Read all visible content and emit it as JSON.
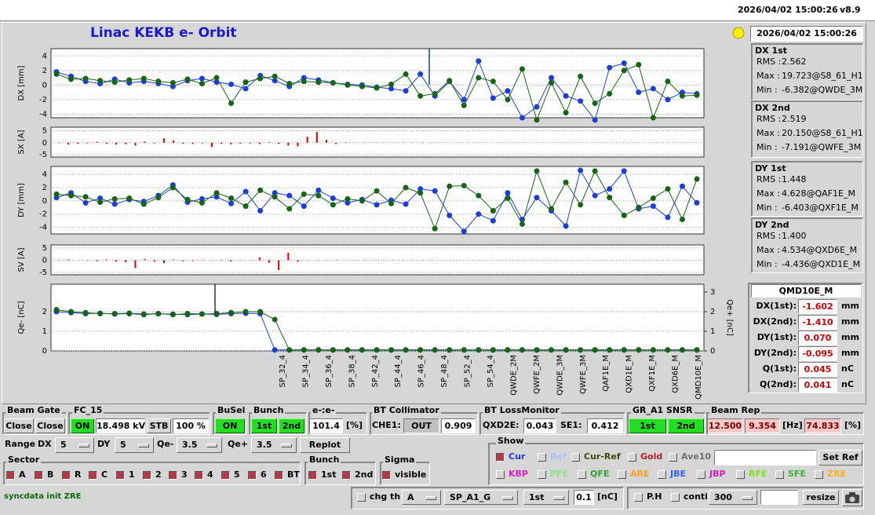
{
  "header": {
    "timestamp": "2026/04/02 15:00:26",
    "version": "v8.9"
  },
  "title": "Linac KEKB e- Orbit",
  "clock": "2026/04/02 15:00:26",
  "plots": [
    {
      "type": "line",
      "ylabel": "DX [mm]",
      "ylim": [
        -4.5,
        5
      ],
      "yticks": [
        -4,
        -2,
        0,
        2,
        4
      ],
      "series": [
        {
          "color": "#1c3ed6",
          "values": [
            1.8,
            1.2,
            0.5,
            0.2,
            0.8,
            0.3,
            0.5,
            0.2,
            -0.2,
            0.6,
            0.9,
            0.4,
            0.1,
            -0.5,
            1.3,
            0.6,
            -0.2,
            1.0,
            0.7,
            0.3,
            0.1,
            0.0,
            -0.3,
            -0.5,
            -0.8,
            1.5,
            -1.5,
            0.5,
            -2.0,
            3.3,
            -1.8,
            -0.8,
            -4.5,
            -3.0,
            1.0,
            -1.5,
            -2.2,
            -4.8,
            2.4,
            3.0,
            -1.0,
            -0.5,
            -2.0,
            -1.0,
            -1.2
          ]
        },
        {
          "color": "#166416",
          "values": [
            1.5,
            0.8,
            0.9,
            0.6,
            0.4,
            0.7,
            0.9,
            0.5,
            0.3,
            0.8,
            0.2,
            1.0,
            -2.5,
            0.4,
            0.9,
            1.2,
            0.2,
            0.5,
            0.4,
            0.3,
            0.0,
            -0.2,
            -0.4,
            0.1,
            1.5,
            -1.5,
            -1.2,
            0.6,
            -2.8,
            1.0,
            0.5,
            -2.0,
            2.2,
            -4.8,
            0.3,
            -3.8,
            1.2,
            -2.5,
            -1.2,
            2.0,
            2.8,
            -4.5,
            0.5,
            -1.5,
            -1.4
          ]
        }
      ]
    },
    {
      "type": "bar",
      "ylabel": "SX [A]",
      "ylim": [
        -6,
        6.5
      ],
      "yticks": [
        -5,
        0,
        5
      ],
      "color": "#e00000",
      "values": [
        0,
        -0.8,
        -0.5,
        -0.3,
        0.4,
        -0.5,
        -0.8,
        -0.6,
        -1.2,
        0.5,
        -0.3,
        1.8,
        1.0,
        -0.4,
        -0.6,
        -0.3,
        -1.8,
        -0.5,
        -0.7,
        -0.4,
        -0.3,
        -0.6,
        0.3,
        -0.5,
        -1.2,
        -1.5,
        2.5,
        4.5,
        1.2,
        -0.6,
        0.2,
        0.1,
        0.1,
        0.1,
        0.1,
        0.1,
        0.1,
        0.1,
        0.1,
        0.1
      ]
    },
    {
      "type": "line",
      "ylabel": "DY [mm]",
      "ylim": [
        -5,
        5.2
      ],
      "yticks": [
        -4,
        -2,
        0,
        2,
        4
      ],
      "series": [
        {
          "color": "#1c3ed6",
          "values": [
            0.5,
            1.2,
            -0.3,
            0.4,
            -0.5,
            0.2,
            -0.1,
            0.8,
            2.4,
            -0.2,
            0.3,
            0.6,
            -0.4,
            1.4,
            -1.5,
            1.2,
            0.8,
            -0.8,
            1.6,
            0.4,
            -0.3,
            0.2,
            -0.6,
            0.1,
            -0.5,
            1.8,
            1.5,
            -2.2,
            -4.6,
            -2.0,
            -3.0,
            1.2,
            -2.8,
            0.5,
            -1.5,
            -3.8,
            4.6,
            0.8,
            1.8,
            4.5,
            -1.2,
            -0.8,
            -2.5,
            2.2,
            -0.3
          ]
        },
        {
          "color": "#166416",
          "values": [
            1.0,
            0.8,
            0.6,
            -0.2,
            0.3,
            0.4,
            -0.5,
            0.5,
            2.0,
            0.2,
            -0.3,
            1.2,
            0.4,
            -0.8,
            1.6,
            0.6,
            -1.2,
            1.0,
            0.8,
            -0.6,
            0.3,
            0.0,
            1.5,
            -0.4,
            2.0,
            1.2,
            -4.2,
            2.2,
            2.3,
            0.8,
            -1.5,
            0.4,
            -3.5,
            4.5,
            -1.2,
            2.8,
            -0.6,
            4.5,
            0.5,
            -2.2,
            -1.0,
            0.4,
            1.8,
            -2.8,
            3.3
          ]
        }
      ]
    },
    {
      "type": "bar",
      "ylabel": "SV [A]",
      "ylim": [
        -5.9,
        6.2
      ],
      "yticks": [
        -5,
        0,
        5
      ],
      "color": "#e00000",
      "values": [
        0.2,
        0.3,
        0.1,
        -0.2,
        -0.4,
        0.3,
        -0.6,
        -0.8,
        -3.2,
        0.5,
        -0.6,
        -1.2,
        0.3,
        -0.4,
        -0.3,
        0.2,
        0.1,
        -0.2,
        -0.5,
        -0.1,
        0.1,
        1.2,
        -1.0,
        -4.0,
        3.0,
        -0.6,
        0.1,
        0.1,
        0.1,
        0.1,
        0.1,
        0.1,
        0.1,
        0.1,
        0.1,
        0.1,
        0.1,
        0.1,
        0.1,
        0.1
      ]
    },
    {
      "type": "charge",
      "ylabel": "Qe- [nC]",
      "y2label": "Qe+ [nC]",
      "ylim": [
        0,
        3.4
      ],
      "yticks": [
        0,
        1,
        2
      ],
      "y2lim": [
        0,
        3.4
      ],
      "y2ticks": [
        0,
        1,
        2,
        3
      ],
      "series": [
        {
          "color": "#1c3ed6",
          "values": [
            2.0,
            1.95,
            1.9,
            1.92,
            1.88,
            1.9,
            1.85,
            1.9,
            1.87,
            1.85,
            1.88,
            1.86,
            1.9,
            1.92,
            1.9,
            0.05,
            0.05,
            0.05,
            0.05,
            0.05,
            0.05,
            0.05,
            0.05,
            0.05,
            0.05,
            0.05,
            0.05,
            0.05,
            0.05,
            0.05,
            0.05,
            0.05,
            0.05,
            0.05,
            0.05,
            0.05,
            0.05,
            0.05,
            0.05,
            0.05,
            0.05,
            0.05,
            0.05,
            0.05,
            0.05
          ]
        },
        {
          "color": "#166416",
          "axis": "y2",
          "values": [
            2.1,
            2.0,
            1.95,
            1.9,
            1.9,
            1.92,
            1.88,
            1.9,
            1.85,
            1.9,
            1.88,
            1.9,
            1.95,
            2.0,
            2.0,
            1.6,
            0.05,
            0.05,
            0.05,
            0.05,
            0.05,
            0.05,
            0.05,
            0.05,
            0.05,
            0.05,
            0.05,
            0.05,
            0.05,
            0.05,
            0.05,
            0.05,
            0.05,
            0.05,
            0.05,
            0.05,
            0.05,
            0.05,
            0.05,
            0.05,
            0.05,
            0.05,
            0.05,
            0.05,
            0.05
          ]
        }
      ]
    }
  ],
  "xlabels": [
    "SP_32_4",
    "SP_34_4",
    "SP_36_4",
    "SP_38_4",
    "SP_42_4",
    "SP_44_4",
    "SP_46_4",
    "SP_48_4",
    "SP_52_4",
    "SP_54_4",
    "QWDE_2M",
    "QWFE_2M",
    "QWDE_3M",
    "QWFE_3M",
    "QAF1E_M",
    "QXD1E_M",
    "QXF1E_M",
    "QXD6E_M",
    "QMD10E_M"
  ],
  "stats": [
    {
      "title": "DX 1st",
      "rows": [
        [
          "RMS :",
          "2.562"
        ],
        [
          "Max :",
          "19.723@S8_61_H1"
        ],
        [
          "Min :",
          "-6.382@QWDE_3M"
        ]
      ]
    },
    {
      "title": "DX 2nd",
      "rows": [
        [
          "RMS :",
          "2.519"
        ],
        [
          "Max :",
          "20.150@S8_61_H1"
        ],
        [
          "Min :",
          "-7.191@QWFE_3M"
        ]
      ]
    },
    {
      "title": "DY 1st",
      "rows": [
        [
          "RMS :",
          "1.448"
        ],
        [
          "Max :",
          "4.628@QAF1E_M"
        ],
        [
          "Min :",
          "-6.403@QXF1E_M"
        ]
      ]
    },
    {
      "title": "DY 2nd",
      "rows": [
        [
          "RMS :",
          "1.400"
        ],
        [
          "Max :",
          "4.534@QXD6E_M"
        ],
        [
          "Min :",
          "-4.436@QXD1E_M"
        ]
      ]
    }
  ],
  "monitor": {
    "name": "QMD10E_M",
    "rows": [
      [
        "DX(1st):",
        "-1.602",
        "mm"
      ],
      [
        "DX(2nd):",
        "-1.410",
        "mm"
      ],
      [
        "DY(1st):",
        "0.070",
        "mm"
      ],
      [
        "DY(2nd):",
        "-0.095",
        "mm"
      ],
      [
        "Q(1st):",
        "0.045",
        "nC"
      ],
      [
        "Q(2nd):",
        "0.041",
        "nC"
      ]
    ]
  },
  "controls": {
    "beam_gate": {
      "label": "Beam Gate",
      "buttons": [
        "Close",
        "Close"
      ]
    },
    "fc": {
      "label": "FC_15",
      "state": "ON",
      "voltage": "18.498 kV",
      "mode": "STB",
      "percent": "100 %"
    },
    "busel": {
      "label": "BuSel",
      "state": "ON"
    },
    "bunch_top": {
      "label": "Bunch",
      "items": [
        "1st",
        "2nd"
      ]
    },
    "ratio": {
      "label": "e-:e-",
      "value": "101.4",
      "unit": "[%]"
    },
    "collimator": {
      "label": "BT Collimator",
      "name": "CHE1:",
      "state": "OUT",
      "value": "0.909"
    },
    "loss": {
      "label": "BT LossMonitor",
      "items": [
        [
          "QXD2E:",
          "0.043"
        ],
        [
          "SE1:",
          "0.412"
        ]
      ]
    },
    "snsr": {
      "label": "GR_A1 SNSR",
      "items": [
        "1st",
        "2nd"
      ]
    },
    "rep": {
      "label": "Beam Rep",
      "values": [
        "12.500",
        "9.354"
      ],
      "unit": "[Hz]",
      "ratio": "74.833",
      "ratio_unit": "[%]"
    },
    "range": {
      "label": "Range",
      "fields": [
        [
          "DX",
          "5"
        ],
        [
          "DY",
          "5"
        ],
        [
          "Qe-",
          "3.5"
        ],
        [
          "Qe+",
          "3.5"
        ]
      ],
      "button": "Replot"
    },
    "show": {
      "label": "Show",
      "row1": [
        {
          "text": "Cur",
          "color": "#1c3ed6",
          "checked": true
        },
        {
          "text": "Ref",
          "color": "#a8c4ff"
        },
        {
          "text": "Cur-Ref",
          "color": "#3a4a10"
        },
        {
          "text": "Gold",
          "color": "#b02020"
        },
        {
          "text": "Ave10",
          "color": "#707070"
        }
      ],
      "button": "Set Ref",
      "row2": [
        {
          "text": "KBP",
          "color": "#e020c0"
        },
        {
          "text": "PFE",
          "color": "#90e090"
        },
        {
          "text": "QFE",
          "color": "#30a030"
        },
        {
          "text": "ARE",
          "color": "#ffa020"
        },
        {
          "text": "JBE",
          "color": "#3060ff"
        },
        {
          "text": "JBP",
          "color": "#d020c0"
        },
        {
          "text": "RFE",
          "color": "#80e020"
        },
        {
          "text": "SFE",
          "color": "#40b040"
        },
        {
          "text": "ZRE",
          "color": "#ffb020"
        }
      ]
    },
    "sector": {
      "label": "Sector",
      "items": [
        "A",
        "B",
        "R",
        "C",
        "1",
        "2",
        "3",
        "4",
        "5",
        "6",
        "BT"
      ]
    },
    "bunch": {
      "label": "Bunch",
      "items": [
        "1st",
        "2nd"
      ]
    },
    "sigma": {
      "label": "Sigma",
      "items": [
        "visible"
      ]
    },
    "status": "syncdata init ZRE",
    "threshold": {
      "label": "chg th",
      "selects": [
        "A",
        "SP_A1_G",
        "1st"
      ],
      "value": "0.1",
      "unit": "[nC]"
    },
    "phase": {
      "items": [
        "P.H",
        "conti"
      ],
      "select": "300",
      "button": "resize"
    }
  }
}
